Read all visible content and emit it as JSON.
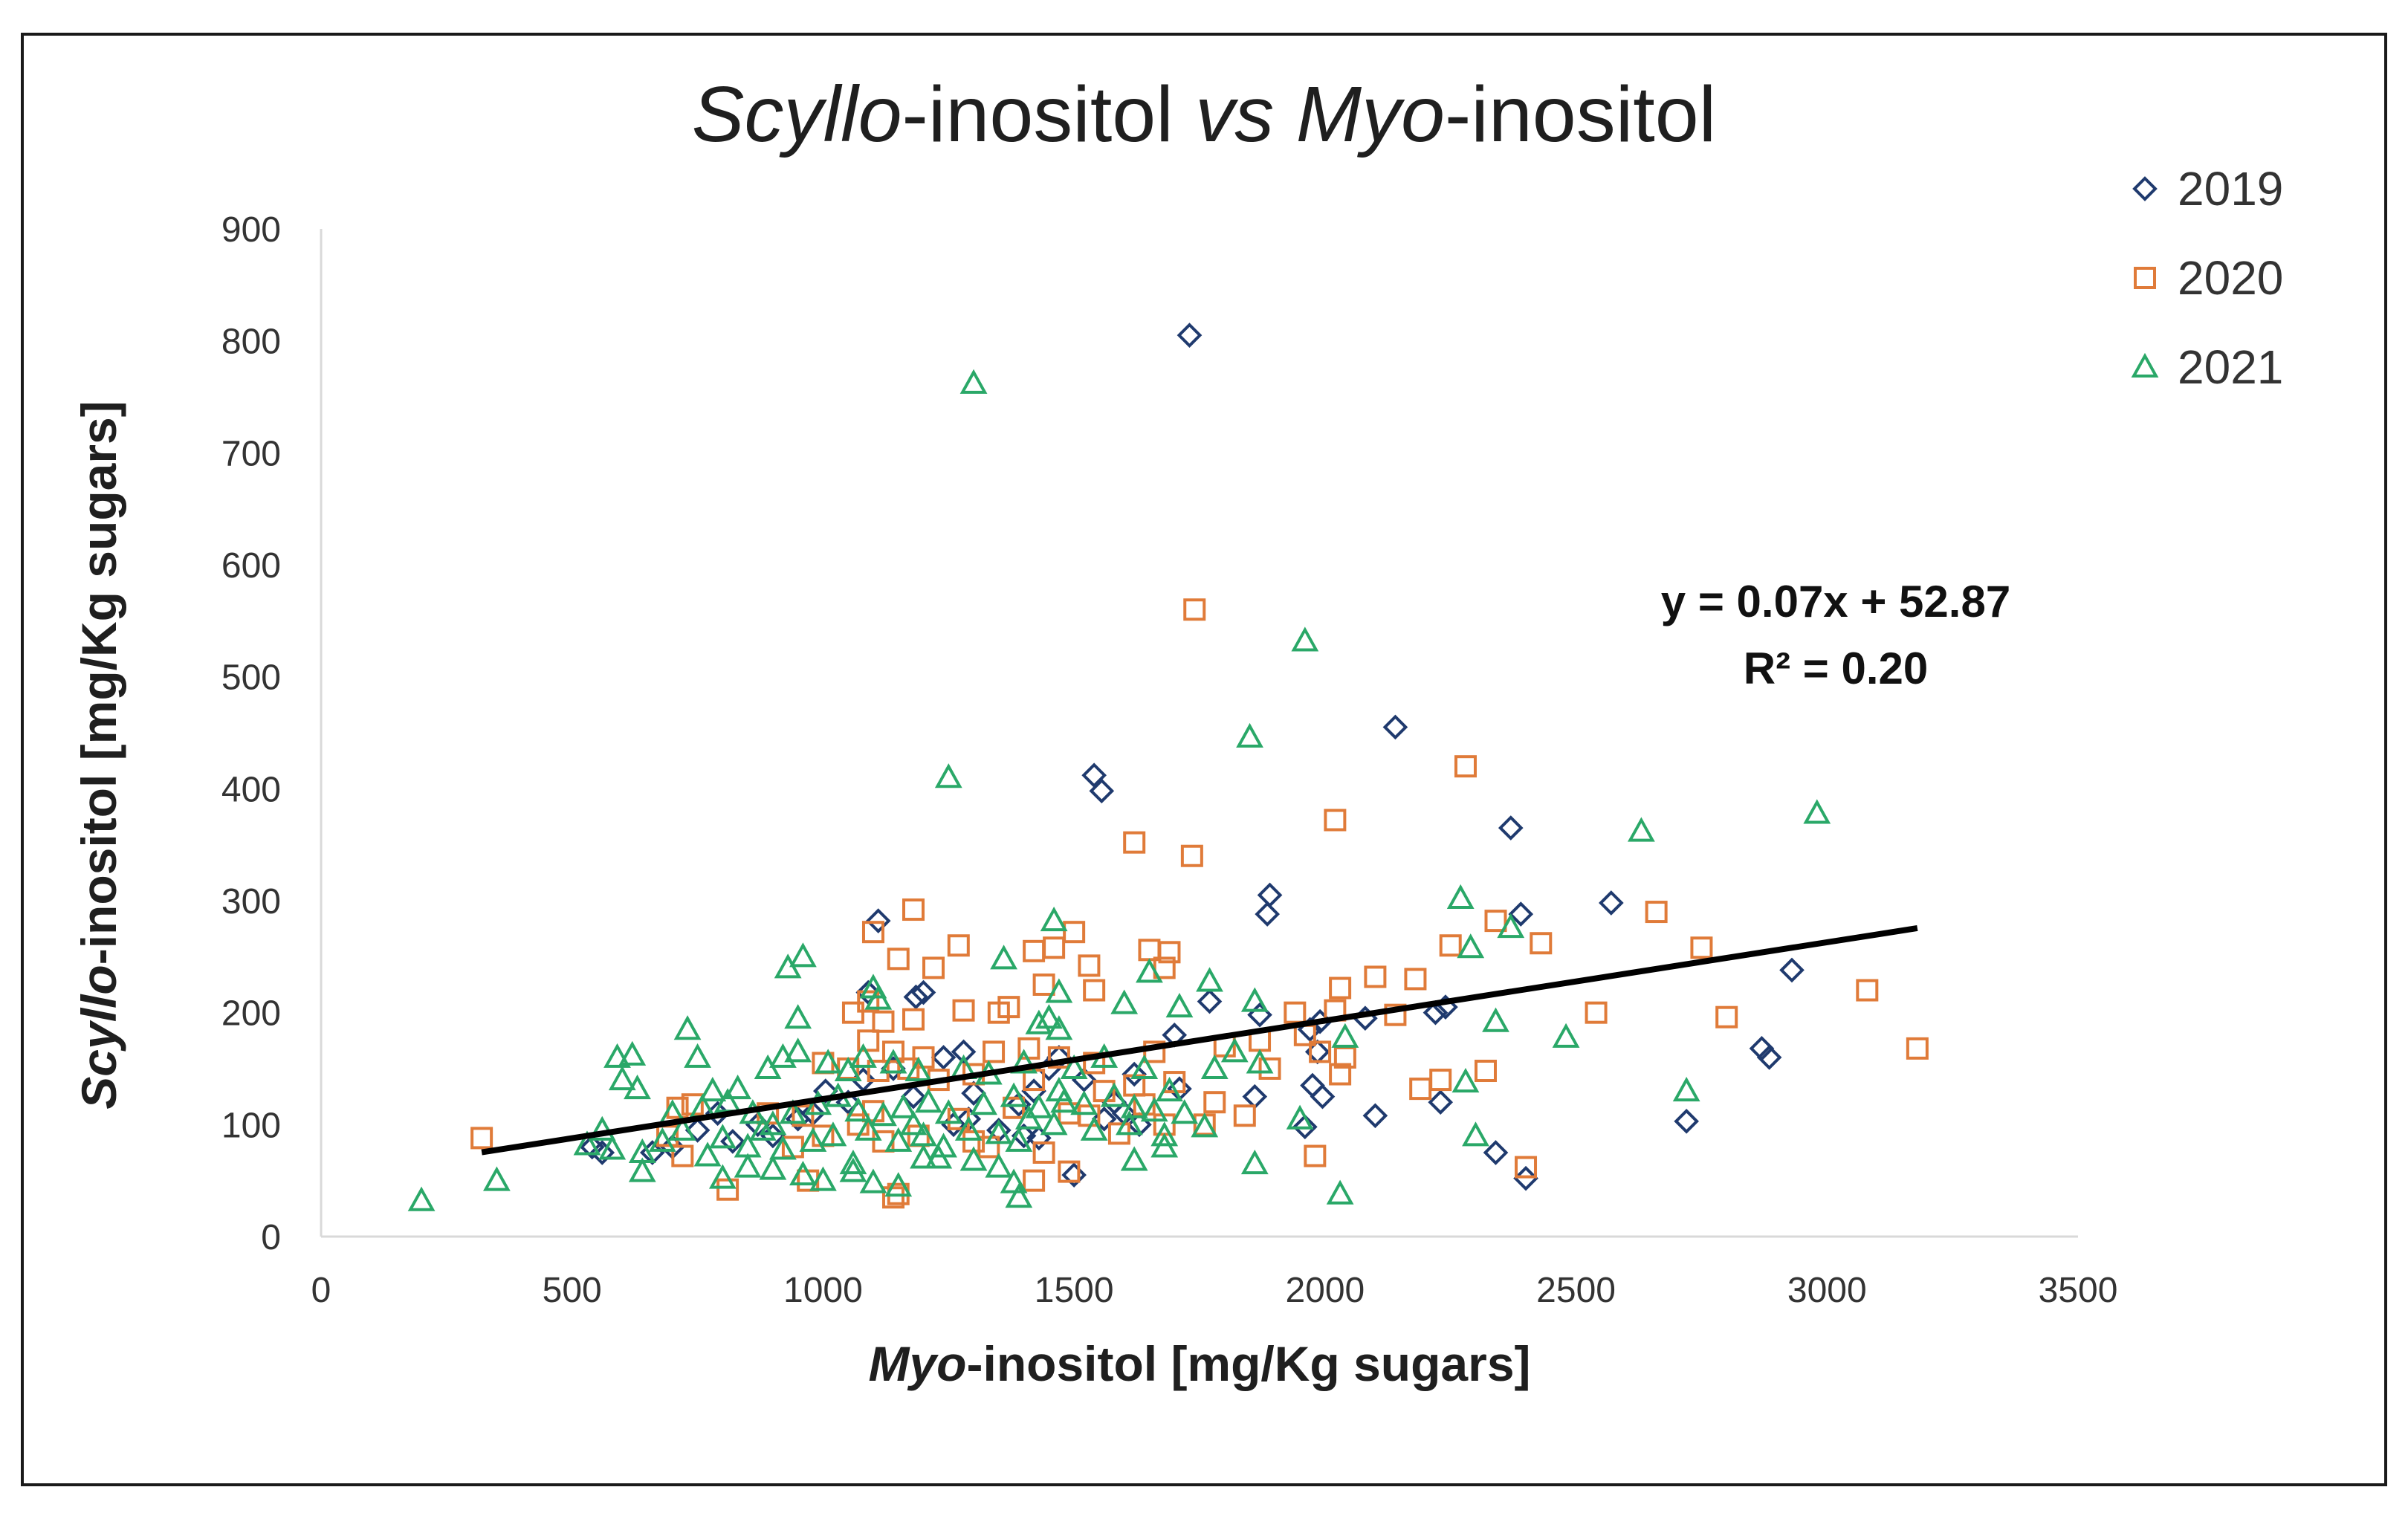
{
  "chart_data": {
    "type": "scatter",
    "title": {
      "part1_italic": "Scyllo",
      "part2": "-inositol ",
      "part3_italic": "vs",
      "part4": " ",
      "part5_italic": "Myo",
      "part6": "-inositol"
    },
    "xlabel": {
      "italic": "Myo",
      "rest": "-inositol  [mg/Kg sugars]"
    },
    "ylabel": {
      "italic": "Scyllo",
      "rest": "-inositol  [mg/Kg sugars]"
    },
    "xlim": [
      0,
      3500
    ],
    "ylim": [
      0,
      900
    ],
    "x_ticks": [
      "0",
      "500",
      "1000",
      "1500",
      "2000",
      "2500",
      "3000",
      "3500"
    ],
    "y_ticks": [
      "0",
      "100",
      "200",
      "300",
      "400",
      "500",
      "600",
      "700",
      "800",
      "900"
    ],
    "grid": false,
    "legend_position": "top-right",
    "trendline": {
      "x_range": [
        320,
        3180
      ],
      "slope": 0.07,
      "intercept": 52.87,
      "equation": "y = 0.07x + 52.87",
      "r2": "R² = 0.20",
      "color": "#000000"
    },
    "series": [
      {
        "name": "2019",
        "marker": "diamond",
        "color": "#1f3a6e",
        "points": [
          [
            1730,
            805
          ],
          [
            2140,
            455
          ],
          [
            1540,
            412
          ],
          [
            1555,
            398
          ],
          [
            2370,
            365
          ],
          [
            2570,
            298
          ],
          [
            1890,
            305
          ],
          [
            1885,
            288
          ],
          [
            2390,
            288
          ],
          [
            1110,
            282
          ],
          [
            1200,
            218
          ],
          [
            1185,
            214
          ],
          [
            1090,
            218
          ],
          [
            1770,
            210
          ],
          [
            2240,
            205
          ],
          [
            2220,
            200
          ],
          [
            2930,
            238
          ],
          [
            1870,
            198
          ],
          [
            1990,
            192
          ],
          [
            1970,
            185
          ],
          [
            2080,
            195
          ],
          [
            1985,
            165
          ],
          [
            1860,
            125
          ],
          [
            1975,
            135
          ],
          [
            1995,
            125
          ],
          [
            2100,
            108
          ],
          [
            2230,
            120
          ],
          [
            1960,
            98
          ],
          [
            2720,
            103
          ],
          [
            2870,
            168
          ],
          [
            2885,
            160
          ],
          [
            2340,
            75
          ],
          [
            2400,
            52
          ],
          [
            1500,
            55
          ],
          [
            1430,
            88
          ],
          [
            1350,
            95
          ],
          [
            1290,
            105
          ],
          [
            1280,
            165
          ],
          [
            1240,
            160
          ],
          [
            1450,
            150
          ],
          [
            1520,
            140
          ],
          [
            1580,
            120
          ],
          [
            1600,
            110
          ],
          [
            1620,
            145
          ],
          [
            1700,
            180
          ],
          [
            1710,
            132
          ],
          [
            1630,
            100
          ],
          [
            1560,
            105
          ],
          [
            1420,
            130
          ],
          [
            1390,
            118
          ],
          [
            1300,
            128
          ],
          [
            1180,
            125
          ],
          [
            1140,
            150
          ],
          [
            1080,
            140
          ],
          [
            1050,
            120
          ],
          [
            1005,
            130
          ],
          [
            980,
            110
          ],
          [
            950,
            105
          ],
          [
            900,
            90
          ],
          [
            870,
            100
          ],
          [
            820,
            85
          ],
          [
            790,
            110
          ],
          [
            750,
            95
          ],
          [
            700,
            80
          ],
          [
            660,
            75
          ],
          [
            560,
            75
          ],
          [
            540,
            80
          ],
          [
            1260,
            100
          ],
          [
            1400,
            90
          ],
          [
            1470,
            160
          ]
        ]
      },
      {
        "name": "2020",
        "marker": "square",
        "color": "#e07b39",
        "points": [
          [
            1740,
            560
          ],
          [
            2280,
            420
          ],
          [
            2020,
            372
          ],
          [
            1620,
            352
          ],
          [
            1735,
            340
          ],
          [
            1180,
            292
          ],
          [
            2660,
            290
          ],
          [
            2340,
            282
          ],
          [
            1100,
            272
          ],
          [
            1270,
            260
          ],
          [
            1500,
            272
          ],
          [
            1650,
            256
          ],
          [
            1690,
            254
          ],
          [
            2430,
            262
          ],
          [
            2250,
            260
          ],
          [
            2750,
            258
          ],
          [
            1150,
            248
          ],
          [
            1220,
            240
          ],
          [
            1420,
            255
          ],
          [
            1460,
            258
          ],
          [
            1680,
            240
          ],
          [
            1530,
            242
          ],
          [
            1440,
            225
          ],
          [
            1540,
            220
          ],
          [
            2100,
            232
          ],
          [
            2180,
            230
          ],
          [
            2030,
            222
          ],
          [
            3080,
            220
          ],
          [
            1370,
            205
          ],
          [
            1350,
            200
          ],
          [
            1280,
            202
          ],
          [
            1180,
            194
          ],
          [
            1120,
            192
          ],
          [
            1090,
            210
          ],
          [
            1060,
            200
          ],
          [
            1940,
            200
          ],
          [
            2140,
            198
          ],
          [
            2020,
            202
          ],
          [
            2540,
            200
          ],
          [
            2800,
            196
          ],
          [
            1090,
            175
          ],
          [
            1140,
            165
          ],
          [
            1200,
            160
          ],
          [
            1340,
            165
          ],
          [
            1410,
            168
          ],
          [
            1470,
            160
          ],
          [
            1540,
            155
          ],
          [
            1660,
            165
          ],
          [
            1800,
            170
          ],
          [
            1870,
            175
          ],
          [
            1960,
            180
          ],
          [
            1990,
            165
          ],
          [
            2040,
            160
          ],
          [
            3180,
            168
          ],
          [
            1000,
            155
          ],
          [
            1050,
            150
          ],
          [
            1110,
            148
          ],
          [
            1170,
            150
          ],
          [
            1230,
            140
          ],
          [
            1300,
            145
          ],
          [
            1420,
            140
          ],
          [
            1560,
            130
          ],
          [
            1620,
            135
          ],
          [
            1700,
            138
          ],
          [
            1780,
            120
          ],
          [
            1890,
            150
          ],
          [
            2030,
            145
          ],
          [
            2190,
            132
          ],
          [
            2230,
            140
          ],
          [
            2320,
            148
          ],
          [
            710,
            115
          ],
          [
            740,
            118
          ],
          [
            890,
            110
          ],
          [
            960,
            108
          ],
          [
            1100,
            112
          ],
          [
            1270,
            105
          ],
          [
            1380,
            115
          ],
          [
            1490,
            110
          ],
          [
            1530,
            108
          ],
          [
            1640,
            118
          ],
          [
            1760,
            100
          ],
          [
            1840,
            108
          ],
          [
            320,
            88
          ],
          [
            690,
            90
          ],
          [
            720,
            72
          ],
          [
            940,
            80
          ],
          [
            1000,
            90
          ],
          [
            1120,
            85
          ],
          [
            1190,
            90
          ],
          [
            1330,
            80
          ],
          [
            1440,
            75
          ],
          [
            1590,
            92
          ],
          [
            1680,
            100
          ],
          [
            1980,
            72
          ],
          [
            810,
            42
          ],
          [
            970,
            50
          ],
          [
            1140,
            35
          ],
          [
            1150,
            38
          ],
          [
            1420,
            50
          ],
          [
            1490,
            58
          ],
          [
            2400,
            62
          ],
          [
            1300,
            85
          ],
          [
            1070,
            100
          ]
        ]
      },
      {
        "name": "2021",
        "marker": "triangle",
        "color": "#2aa868",
        "points": [
          [
            1300,
            762
          ],
          [
            1960,
            532
          ],
          [
            1850,
            446
          ],
          [
            1250,
            410
          ],
          [
            2980,
            378
          ],
          [
            2630,
            362
          ],
          [
            2270,
            302
          ],
          [
            1460,
            282
          ],
          [
            2370,
            276
          ],
          [
            2290,
            258
          ],
          [
            960,
            250
          ],
          [
            930,
            240
          ],
          [
            1360,
            248
          ],
          [
            1650,
            236
          ],
          [
            1770,
            228
          ],
          [
            1470,
            218
          ],
          [
            1600,
            208
          ],
          [
            1710,
            205
          ],
          [
            1860,
            210
          ],
          [
            1100,
            222
          ],
          [
            1110,
            212
          ],
          [
            950,
            195
          ],
          [
            1430,
            190
          ],
          [
            1450,
            195
          ],
          [
            1470,
            185
          ],
          [
            2340,
            192
          ],
          [
            2040,
            178
          ],
          [
            2480,
            178
          ],
          [
            2720,
            130
          ],
          [
            730,
            185
          ],
          [
            750,
            160
          ],
          [
            590,
            160
          ],
          [
            620,
            162
          ],
          [
            600,
            140
          ],
          [
            630,
            132
          ],
          [
            780,
            130
          ],
          [
            830,
            132
          ],
          [
            890,
            150
          ],
          [
            920,
            160
          ],
          [
            950,
            165
          ],
          [
            1010,
            155
          ],
          [
            1050,
            148
          ],
          [
            1080,
            160
          ],
          [
            1140,
            155
          ],
          [
            1190,
            148
          ],
          [
            1280,
            150
          ],
          [
            1330,
            145
          ],
          [
            1400,
            155
          ],
          [
            1500,
            150
          ],
          [
            1560,
            160
          ],
          [
            1640,
            150
          ],
          [
            1690,
            130
          ],
          [
            1780,
            150
          ],
          [
            1820,
            165
          ],
          [
            1870,
            155
          ],
          [
            700,
            110
          ],
          [
            760,
            115
          ],
          [
            810,
            120
          ],
          [
            860,
            110
          ],
          [
            900,
            100
          ],
          [
            940,
            110
          ],
          [
            990,
            118
          ],
          [
            1030,
            125
          ],
          [
            1070,
            112
          ],
          [
            1120,
            108
          ],
          [
            1160,
            115
          ],
          [
            1210,
            120
          ],
          [
            1250,
            110
          ],
          [
            1320,
            118
          ],
          [
            1380,
            125
          ],
          [
            1430,
            115
          ],
          [
            1480,
            120
          ],
          [
            1520,
            118
          ],
          [
            1580,
            125
          ],
          [
            1620,
            115
          ],
          [
            1660,
            112
          ],
          [
            1720,
            110
          ],
          [
            1950,
            105
          ],
          [
            2280,
            138
          ],
          [
            530,
            82
          ],
          [
            560,
            95
          ],
          [
            580,
            78
          ],
          [
            640,
            75
          ],
          [
            680,
            85
          ],
          [
            720,
            95
          ],
          [
            770,
            72
          ],
          [
            800,
            88
          ],
          [
            850,
            80
          ],
          [
            880,
            95
          ],
          [
            920,
            78
          ],
          [
            980,
            85
          ],
          [
            1020,
            90
          ],
          [
            1090,
            95
          ],
          [
            1150,
            85
          ],
          [
            1200,
            90
          ],
          [
            1240,
            80
          ],
          [
            1290,
            95
          ],
          [
            1350,
            92
          ],
          [
            1390,
            85
          ],
          [
            1460,
            100
          ],
          [
            1540,
            95
          ],
          [
            1610,
            100
          ],
          [
            1680,
            90
          ],
          [
            1760,
            98
          ],
          [
            640,
            58
          ],
          [
            800,
            52
          ],
          [
            900,
            60
          ],
          [
            960,
            55
          ],
          [
            1000,
            50
          ],
          [
            1060,
            58
          ],
          [
            1100,
            48
          ],
          [
            1150,
            45
          ],
          [
            1230,
            70
          ],
          [
            1350,
            62
          ],
          [
            1380,
            48
          ],
          [
            1390,
            35
          ],
          [
            1620,
            68
          ],
          [
            1680,
            80
          ],
          [
            1860,
            65
          ],
          [
            2300,
            90
          ],
          [
            2030,
            38
          ],
          [
            200,
            32
          ],
          [
            350,
            50
          ],
          [
            850,
            62
          ],
          [
            1060,
            65
          ],
          [
            1200,
            70
          ],
          [
            1300,
            68
          ],
          [
            1180,
            100
          ],
          [
            1410,
            105
          ],
          [
            1470,
            130
          ]
        ]
      }
    ]
  }
}
